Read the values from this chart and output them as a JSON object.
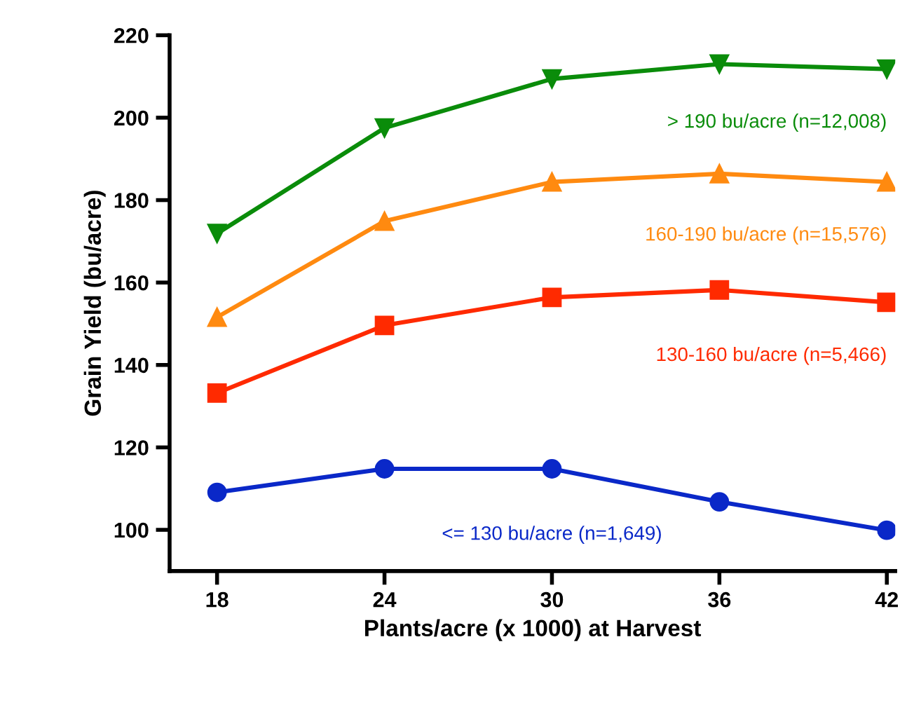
{
  "chart_data": {
    "type": "line",
    "xlabel": "Plants/acre (x 1000) at Harvest",
    "ylabel": "Grain Yield (bu/acre)",
    "x": [
      18,
      24,
      30,
      36,
      42
    ],
    "xlim": [
      16.3,
      42.3
    ],
    "xticks": [
      18,
      24,
      30,
      36,
      42
    ],
    "ylim": [
      90,
      220
    ],
    "yticks": [
      100,
      120,
      140,
      160,
      180,
      200,
      220
    ],
    "grid": false,
    "legend": false,
    "series": [
      {
        "name": "<= 130 bu/acre (n=1,649)",
        "color": "#0a28c8",
        "marker": "circle",
        "values": [
          109.1,
          114.8,
          114.8,
          106.8,
          99.9
        ]
      },
      {
        "name": "130-160 bu/acre (n=5,466)",
        "color": "#ff2a00",
        "marker": "square",
        "values": [
          133.2,
          149.6,
          156.4,
          158.2,
          155.2
        ]
      },
      {
        "name": "160-190 bu/acre (n=15,576)",
        "color": "#ff8a10",
        "marker": "triangle",
        "values": [
          151.6,
          174.9,
          184.4,
          186.4,
          184.4
        ]
      },
      {
        "name": "> 190 bu/acre (n=12,008)",
        "color": "#0a8c0a",
        "marker": "triangle_down",
        "values": [
          171.9,
          197.5,
          209.4,
          213.0,
          211.8
        ]
      }
    ]
  }
}
